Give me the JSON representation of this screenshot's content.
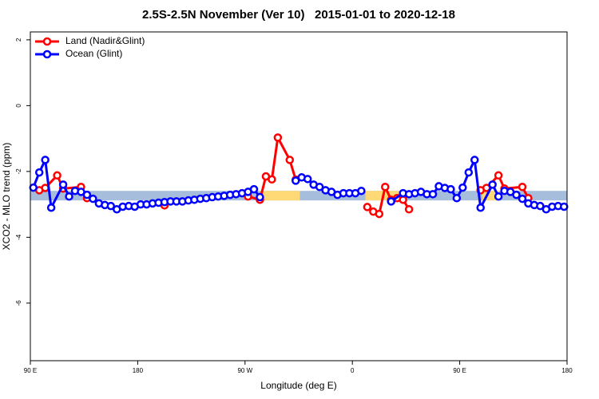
{
  "chart_data": {
    "type": "line",
    "title": "2.5S-2.5N November (Ver 10)   2015-01-01 to 2020-12-18",
    "x_label": "Longitude (deg E)",
    "y_label": "XCO2 - MLO trend (ppm)",
    "xlim": [
      90,
      540
    ],
    "ylim": [
      -7.75,
      2.24
    ],
    "xticks": [
      {
        "value": 90,
        "label": "90 E"
      },
      {
        "value": 180,
        "label": "180"
      },
      {
        "value": 270,
        "label": "90 W"
      },
      {
        "value": 360,
        "label": "0"
      },
      {
        "value": 450,
        "label": "90 E"
      },
      {
        "value": 540,
        "label": "180"
      }
    ],
    "yticks": [
      2,
      0,
      -2,
      -4,
      -6
    ],
    "legend": "top-left",
    "bands": [
      {
        "color": "#a6bddb",
        "x": [
          90,
          540
        ],
        "y": [
          -2.59,
          -2.88
        ]
      },
      {
        "color": "#fed976",
        "x": [
          283,
          316
        ],
        "y": [
          -2.59,
          -2.88
        ]
      },
      {
        "color": "#fed976",
        "x": [
          371,
          403
        ],
        "y": [
          -2.59,
          -2.88
        ]
      },
      {
        "color": "#fed976",
        "x": [
          469,
          483
        ],
        "y": [
          -2.59,
          -2.88
        ]
      }
    ],
    "series": [
      {
        "name": "Land (Nadir&Glint)",
        "color": "#ff0000",
        "x": [
          97.5,
          102.5,
          112.5,
          117.5,
          132.5,
          137.5,
          170,
          202.5,
          240,
          272.5,
          282.5,
          287.5,
          292.5,
          297.5,
          307.5,
          312.5,
          340,
          372.5,
          377.5,
          382.5,
          387.5,
          392.5,
          397.5,
          402.5,
          407.5,
          440,
          467.5,
          472.5,
          482.5,
          487.5,
          502.5,
          507.5
        ],
        "values": [
          -2.57,
          -2.5,
          -2.12,
          -2.52,
          -2.47,
          -2.81,
          null,
          -3.03,
          null,
          -2.76,
          -2.86,
          -2.15,
          -2.24,
          -0.97,
          -1.65,
          -2.25,
          null,
          -3.08,
          -3.22,
          -3.29,
          -2.47,
          -2.86,
          -2.81,
          -2.86,
          -3.15,
          null,
          -2.57,
          -2.5,
          -2.12,
          -2.52,
          -2.47,
          -2.81
        ]
      },
      {
        "name": "Ocean (Glint)",
        "color": "#0000ff",
        "x": [
          92.5,
          97.5,
          102.5,
          107.5,
          117.5,
          122.5,
          127.5,
          132.5,
          137.5,
          142.5,
          147.5,
          152.5,
          157.5,
          162.5,
          167.5,
          172.5,
          177.5,
          182.5,
          187.5,
          192.5,
          197.5,
          202.5,
          207.5,
          212.5,
          217.5,
          222.5,
          227.5,
          232.5,
          237.5,
          242.5,
          247.5,
          252.5,
          257.5,
          262.5,
          267.5,
          272.5,
          277.5,
          282.5,
          287.5,
          312.5,
          317.5,
          322.5,
          327.5,
          332.5,
          337.5,
          342.5,
          347.5,
          352.5,
          357.5,
          362.5,
          367.5,
          372.5,
          392.5,
          402.5,
          407.5,
          412.5,
          417.5,
          422.5,
          427.5,
          432.5,
          437.5,
          442.5,
          447.5,
          452.5,
          457.5,
          462.5,
          467.5,
          477.5,
          482.5,
          487.5,
          492.5,
          497.5,
          502.5,
          507.5,
          512.5,
          517.5,
          522.5,
          527.5,
          532.5,
          537.5
        ],
        "values": [
          -2.49,
          -2.03,
          -1.65,
          -3.1,
          -2.4,
          -2.76,
          -2.59,
          -2.62,
          -2.71,
          -2.83,
          -2.97,
          -3.02,
          -3.05,
          -3.15,
          -3.07,
          -3.05,
          -3.07,
          -3.0,
          -3.0,
          -2.97,
          -2.95,
          -2.93,
          -2.91,
          -2.91,
          -2.91,
          -2.88,
          -2.86,
          -2.83,
          -2.81,
          -2.78,
          -2.76,
          -2.74,
          -2.71,
          -2.69,
          -2.66,
          -2.62,
          -2.54,
          -2.78,
          null,
          -2.28,
          -2.18,
          -2.23,
          -2.4,
          -2.47,
          -2.57,
          -2.62,
          -2.71,
          -2.66,
          -2.66,
          -2.66,
          -2.59,
          null,
          -2.91,
          -2.66,
          -2.69,
          -2.66,
          -2.62,
          -2.69,
          -2.69,
          -2.45,
          -2.5,
          -2.54,
          -2.81,
          -2.49,
          -2.03,
          -1.65,
          -3.1,
          -2.4,
          -2.76,
          -2.59,
          -2.62,
          -2.71,
          -2.83,
          -2.97,
          -3.02,
          -3.05,
          -3.15,
          -3.07,
          -3.05,
          -3.07
        ]
      }
    ]
  }
}
